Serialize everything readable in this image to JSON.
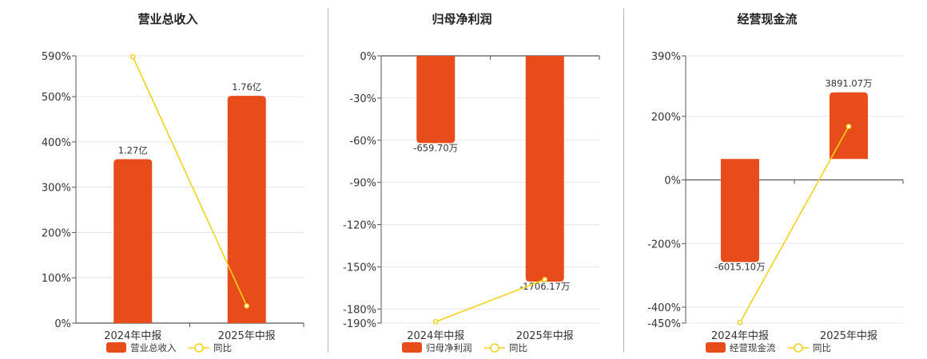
{
  "colors": {
    "bar": "#e84c1a",
    "line": "#f5d11a",
    "grid": "#e6e6e6",
    "axis": "#555555",
    "text": "#333333",
    "divider": "#b5b5b5"
  },
  "chart_data": [
    {
      "type": "bar",
      "title": "营业总收入",
      "categories": [
        "2024年中报",
        "2025年中报"
      ],
      "series": [
        {
          "name": "营业总收入",
          "type": "bar",
          "axis": "right",
          "values": [
            1.27,
            1.76
          ],
          "labels": [
            "1.27亿",
            "1.76亿"
          ]
        },
        {
          "name": "同比",
          "type": "line",
          "axis": "left",
          "values": [
            588,
            38
          ]
        }
      ],
      "ylim": [
        0,
        590
      ],
      "yticks": [
        0,
        100,
        200,
        300,
        400,
        500,
        590
      ],
      "ytick_labels": [
        "0%",
        "100%",
        "200%",
        "300%",
        "400%",
        "500%",
        "590%"
      ],
      "y2lim": [
        0,
        2.07
      ],
      "legend": "bottom"
    },
    {
      "type": "bar",
      "title": "归母净利润",
      "categories": [
        "2024年中报",
        "2025年中报"
      ],
      "series": [
        {
          "name": "归母净利润",
          "type": "bar",
          "axis": "right",
          "values": [
            -659.7,
            -1706.17
          ],
          "labels": [
            "-659.70万",
            "-1706.17万"
          ]
        },
        {
          "name": "同比",
          "type": "line",
          "axis": "left",
          "values": [
            -189,
            -159
          ]
        }
      ],
      "ylim": [
        -190,
        0
      ],
      "yticks": [
        0,
        -30,
        -60,
        -90,
        -120,
        -150,
        -180,
        -190
      ],
      "ytick_labels": [
        "0%",
        "-30%",
        "-60%",
        "-90%",
        "-120%",
        "-150%",
        "-180%",
        "-190%"
      ],
      "y2lim": [
        -2020,
        0
      ],
      "legend": "bottom"
    },
    {
      "type": "bar",
      "title": "经营现金流",
      "categories": [
        "2024年中报",
        "2025年中报"
      ],
      "series": [
        {
          "name": "经营现金流",
          "type": "bar",
          "axis": "right",
          "values": [
            -6015.1,
            3891.07
          ],
          "labels": [
            "-6015.10万",
            "3891.07万"
          ]
        },
        {
          "name": "同比",
          "type": "line",
          "axis": "left",
          "values": [
            -448,
            168
          ]
        }
      ],
      "ylim": [
        -450,
        390
      ],
      "yticks": [
        390,
        200,
        0,
        -200,
        -400,
        -450
      ],
      "ytick_labels": [
        "390%",
        "200%",
        "0%",
        "-200%",
        "-400%",
        "-450%"
      ],
      "y2lim": [
        -9580,
        6020
      ],
      "legend": "bottom"
    }
  ]
}
